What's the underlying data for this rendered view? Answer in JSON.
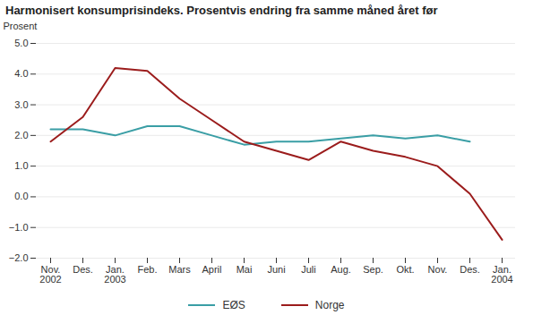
{
  "chart_data": {
    "type": "line",
    "title": "Harmonisert konsumprisindeks. Prosentvis endring fra samme måned året før",
    "y_label": "Prosent",
    "categories": [
      "Nov.\n2002",
      "Des.",
      "Jan.\n2003",
      "Feb.",
      "Mars",
      "April",
      "Mai",
      "Juni",
      "Juli",
      "Aug.",
      "Sep.",
      "Okt.",
      "Nov.",
      "Des.",
      "Jan.\n2004"
    ],
    "series": [
      {
        "name": "EØS",
        "color": "#3a9ea5",
        "values": [
          2.2,
          2.2,
          2.0,
          2.3,
          2.3,
          2.0,
          1.7,
          1.8,
          1.8,
          1.9,
          2.0,
          1.9,
          2.0,
          1.8,
          null
        ]
      },
      {
        "name": "Norge",
        "color": "#9b1c1c",
        "values": [
          1.8,
          2.6,
          4.2,
          4.1,
          3.2,
          2.5,
          1.8,
          1.5,
          1.2,
          1.8,
          1.5,
          1.3,
          1.0,
          0.1,
          -1.4
        ]
      }
    ],
    "ylim": [
      -2,
      5
    ],
    "yticks": [
      -2,
      -1,
      0,
      1,
      2,
      3,
      4,
      5
    ],
    "grid": true,
    "legend": "bottom"
  }
}
